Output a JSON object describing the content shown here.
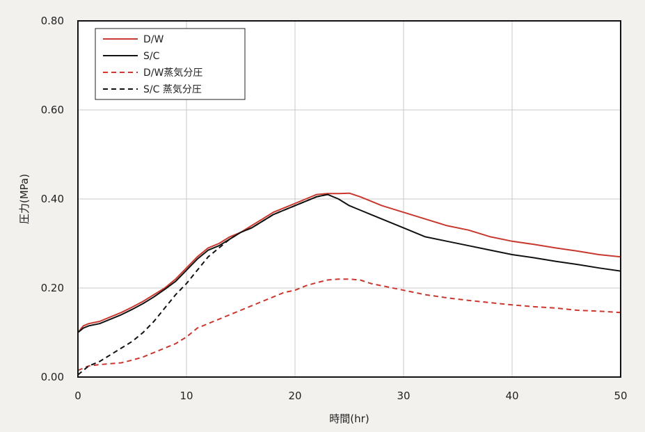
{
  "chart_data": {
    "type": "line",
    "title": "",
    "xlabel": "時間(hr)",
    "ylabel": "圧力(MPa)",
    "xlim": [
      0,
      50
    ],
    "ylim": [
      0,
      0.8
    ],
    "xticks": [
      0,
      10,
      20,
      30,
      40,
      50
    ],
    "xtick_labels": [
      "0",
      "10",
      "20",
      "30",
      "40",
      "50"
    ],
    "yticks": [
      0,
      0.2,
      0.4,
      0.6,
      0.8
    ],
    "ytick_labels": [
      "0.00",
      "0.20",
      "0.40",
      "0.60",
      "0.80"
    ],
    "grid": true,
    "legend_position": "top-left",
    "series": [
      {
        "name": "D/W",
        "color": "#c8382e",
        "dash": "solid",
        "x": [
          0,
          0.5,
          1,
          2,
          3,
          4,
          5,
          6,
          7,
          8,
          9,
          10,
          11,
          12,
          13,
          14,
          15,
          16,
          17,
          18,
          19,
          20,
          21,
          22,
          23,
          24,
          25,
          26,
          27,
          28,
          30,
          32,
          34,
          36,
          38,
          40,
          42,
          44,
          46,
          48,
          50
        ],
        "y": [
          0.1,
          0.115,
          0.12,
          0.125,
          0.135,
          0.145,
          0.157,
          0.17,
          0.185,
          0.2,
          0.22,
          0.245,
          0.27,
          0.29,
          0.3,
          0.315,
          0.325,
          0.34,
          0.355,
          0.37,
          0.38,
          0.39,
          0.4,
          0.41,
          0.412,
          0.412,
          0.413,
          0.405,
          0.395,
          0.385,
          0.37,
          0.355,
          0.34,
          0.33,
          0.315,
          0.305,
          0.298,
          0.29,
          0.283,
          0.275,
          0.27
        ]
      },
      {
        "name": "S/C",
        "color": "#111111",
        "dash": "solid",
        "x": [
          0,
          0.5,
          1,
          2,
          3,
          4,
          5,
          6,
          7,
          8,
          9,
          10,
          11,
          12,
          13,
          14,
          15,
          16,
          17,
          18,
          19,
          20,
          21,
          22,
          23,
          24,
          25,
          26,
          27,
          28,
          30,
          32,
          34,
          36,
          38,
          40,
          42,
          44,
          46,
          48,
          50
        ],
        "y": [
          0.1,
          0.11,
          0.115,
          0.12,
          0.13,
          0.14,
          0.152,
          0.165,
          0.18,
          0.197,
          0.215,
          0.24,
          0.265,
          0.285,
          0.295,
          0.31,
          0.325,
          0.335,
          0.35,
          0.365,
          0.375,
          0.385,
          0.395,
          0.405,
          0.41,
          0.4,
          0.385,
          0.375,
          0.365,
          0.355,
          0.335,
          0.315,
          0.305,
          0.295,
          0.285,
          0.275,
          0.268,
          0.26,
          0.253,
          0.245,
          0.238
        ]
      },
      {
        "name": "D/W蒸気分圧",
        "color": "#c8382e",
        "dash": "dashed",
        "x": [
          0,
          1,
          2,
          3,
          4,
          5,
          6,
          7,
          8,
          9,
          10,
          11,
          12,
          13,
          14,
          15,
          16,
          17,
          18,
          19,
          20,
          21,
          22,
          23,
          24,
          25,
          26,
          27,
          28,
          30,
          32,
          34,
          36,
          38,
          40,
          42,
          44,
          46,
          48,
          50
        ],
        "y": [
          0.015,
          0.025,
          0.028,
          0.03,
          0.032,
          0.038,
          0.045,
          0.055,
          0.065,
          0.075,
          0.09,
          0.11,
          0.12,
          0.13,
          0.14,
          0.15,
          0.16,
          0.17,
          0.18,
          0.19,
          0.195,
          0.205,
          0.212,
          0.218,
          0.22,
          0.22,
          0.218,
          0.21,
          0.205,
          0.195,
          0.185,
          0.178,
          0.172,
          0.167,
          0.162,
          0.158,
          0.155,
          0.15,
          0.148,
          0.145
        ]
      },
      {
        "name": "S/C 蒸気分圧",
        "color": "#111111",
        "dash": "dashed",
        "x": [
          0,
          1,
          2,
          3,
          4,
          5,
          6,
          7,
          8,
          9,
          10,
          11,
          12,
          13,
          14,
          15,
          16,
          17,
          18,
          19,
          20,
          21,
          22,
          23
        ],
        "y": [
          0.005,
          0.025,
          0.035,
          0.05,
          0.065,
          0.08,
          0.1,
          0.125,
          0.155,
          0.185,
          0.21,
          0.24,
          0.27,
          0.29,
          0.31,
          0.325,
          0.335,
          0.35,
          0.365,
          0.375,
          0.385,
          0.395,
          0.405,
          0.41
        ]
      }
    ]
  }
}
